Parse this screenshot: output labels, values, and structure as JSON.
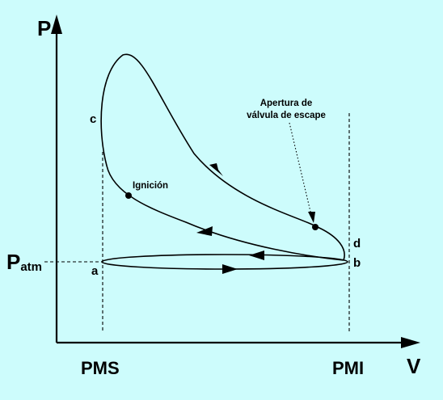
{
  "diagram": {
    "y_axis_label": "P",
    "x_axis_label": "V",
    "patm_main": "P",
    "patm_sub": "atm",
    "pms_label": "PMS",
    "pmi_label": "PMI",
    "point_a": "a",
    "point_b": "b",
    "point_c": "c",
    "point_d": "d",
    "ignition_label": "Ignición",
    "exhaust_line1": "Apertura de",
    "exhaust_line2": "válvula de escape"
  },
  "colors": {
    "background": "#cdfcfc",
    "ink": "#000000"
  }
}
